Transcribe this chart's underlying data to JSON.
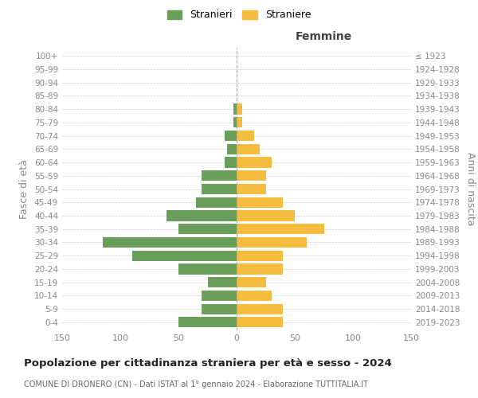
{
  "age_groups": [
    "0-4",
    "5-9",
    "10-14",
    "15-19",
    "20-24",
    "25-29",
    "30-34",
    "35-39",
    "40-44",
    "45-49",
    "50-54",
    "55-59",
    "60-64",
    "65-69",
    "70-74",
    "75-79",
    "80-84",
    "85-89",
    "90-94",
    "95-99",
    "100+"
  ],
  "birth_years": [
    "2019-2023",
    "2014-2018",
    "2009-2013",
    "2004-2008",
    "1999-2003",
    "1994-1998",
    "1989-1993",
    "1984-1988",
    "1979-1983",
    "1974-1978",
    "1969-1973",
    "1964-1968",
    "1959-1963",
    "1954-1958",
    "1949-1953",
    "1944-1948",
    "1939-1943",
    "1934-1938",
    "1929-1933",
    "1924-1928",
    "≤ 1923"
  ],
  "males": [
    50,
    30,
    30,
    25,
    50,
    90,
    115,
    50,
    60,
    35,
    30,
    30,
    10,
    8,
    10,
    3,
    3,
    0,
    0,
    0,
    0
  ],
  "females": [
    40,
    40,
    30,
    25,
    40,
    40,
    60,
    75,
    50,
    40,
    25,
    25,
    30,
    20,
    15,
    5,
    5,
    0,
    0,
    0,
    0
  ],
  "male_color": "#6a9e5b",
  "female_color": "#f5bc42",
  "grid_color": "#cccccc",
  "title": "Popolazione per cittadinanza straniera per età e sesso - 2024",
  "subtitle": "COMUNE DI DRONERO (CN) - Dati ISTAT al 1° gennaio 2024 - Elaborazione TUTTITALIA.IT",
  "xlabel_right": "Femmine",
  "ylabel_left": "Fasce di età",
  "ylabel_right": "Anni di nascita",
  "legend_stranieri": "Stranieri",
  "legend_straniere": "Straniere",
  "xlim": 150,
  "background_color": "#ffffff"
}
